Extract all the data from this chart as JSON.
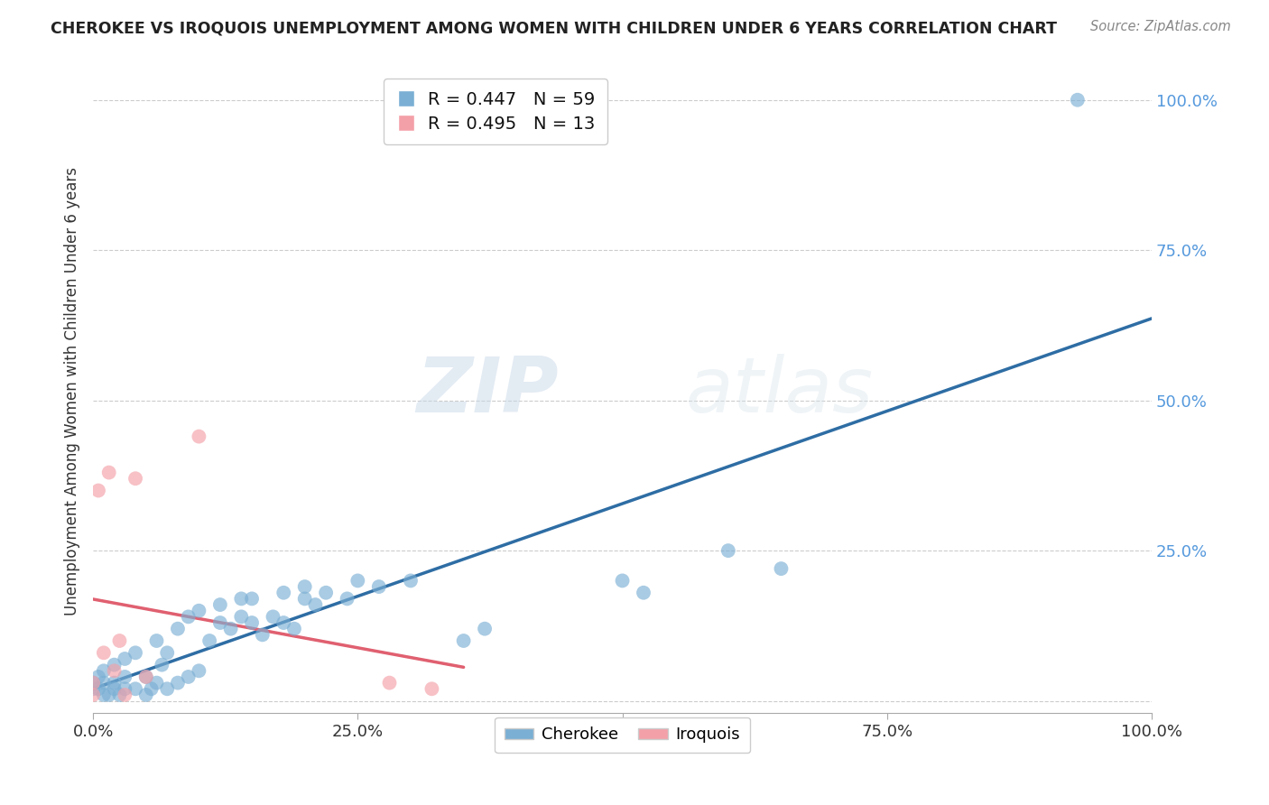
{
  "title": "CHEROKEE VS IROQUOIS UNEMPLOYMENT AMONG WOMEN WITH CHILDREN UNDER 6 YEARS CORRELATION CHART",
  "source": "Source: ZipAtlas.com",
  "ylabel": "Unemployment Among Women with Children Under 6 years",
  "xlabel": "",
  "watermark_zip": "ZIP",
  "watermark_atlas": "atlas",
  "cherokee_R": 0.447,
  "cherokee_N": 59,
  "iroquois_R": 0.495,
  "iroquois_N": 13,
  "cherokee_color": "#7BAFD4",
  "iroquois_color": "#F4A0A8",
  "cherokee_line_color": "#2E6DA4",
  "iroquois_line_color": "#E06070",
  "background_color": "#FFFFFF",
  "grid_color": "#CCCCCC",
  "cherokee_x": [
    0.0,
    0.0,
    0.005,
    0.005,
    0.01,
    0.01,
    0.01,
    0.015,
    0.02,
    0.02,
    0.02,
    0.025,
    0.03,
    0.03,
    0.03,
    0.04,
    0.04,
    0.05,
    0.05,
    0.055,
    0.06,
    0.06,
    0.065,
    0.07,
    0.07,
    0.08,
    0.08,
    0.09,
    0.09,
    0.1,
    0.1,
    0.11,
    0.12,
    0.12,
    0.13,
    0.14,
    0.14,
    0.15,
    0.15,
    0.16,
    0.17,
    0.18,
    0.18,
    0.19,
    0.2,
    0.2,
    0.21,
    0.22,
    0.24,
    0.25,
    0.27,
    0.3,
    0.35,
    0.37,
    0.5,
    0.52,
    0.6,
    0.65,
    0.93
  ],
  "cherokee_y": [
    0.02,
    0.03,
    0.02,
    0.04,
    0.01,
    0.03,
    0.05,
    0.01,
    0.02,
    0.03,
    0.06,
    0.01,
    0.02,
    0.04,
    0.07,
    0.02,
    0.08,
    0.01,
    0.04,
    0.02,
    0.03,
    0.1,
    0.06,
    0.02,
    0.08,
    0.03,
    0.12,
    0.04,
    0.14,
    0.05,
    0.15,
    0.1,
    0.13,
    0.16,
    0.12,
    0.14,
    0.17,
    0.13,
    0.17,
    0.11,
    0.14,
    0.13,
    0.18,
    0.12,
    0.17,
    0.19,
    0.16,
    0.18,
    0.17,
    0.2,
    0.19,
    0.2,
    0.1,
    0.12,
    0.2,
    0.18,
    0.25,
    0.22,
    1.0
  ],
  "iroquois_x": [
    0.0,
    0.0,
    0.005,
    0.01,
    0.015,
    0.02,
    0.025,
    0.03,
    0.04,
    0.05,
    0.1,
    0.28,
    0.32
  ],
  "iroquois_y": [
    0.01,
    0.03,
    0.35,
    0.08,
    0.38,
    0.05,
    0.1,
    0.01,
    0.37,
    0.04,
    0.44,
    0.03,
    0.02
  ],
  "xlim": [
    0.0,
    1.0
  ],
  "ylim": [
    -0.02,
    1.05
  ],
  "xtick_positions": [
    0.0,
    0.25,
    0.5,
    0.75,
    1.0
  ],
  "xtick_labels": [
    "0.0%",
    "25.0%",
    "50.0%",
    "75.0%",
    "100.0%"
  ],
  "ytick_positions": [
    0.0,
    0.25,
    0.5,
    0.75,
    1.0
  ],
  "ytick_labels": [
    "",
    "25.0%",
    "50.0%",
    "75.0%",
    "100.0%"
  ],
  "legend_R_color": "#2255AA",
  "legend_N_color": "#2255AA",
  "title_color": "#222222",
  "source_color": "#888888",
  "ytick_color": "#5599DD"
}
